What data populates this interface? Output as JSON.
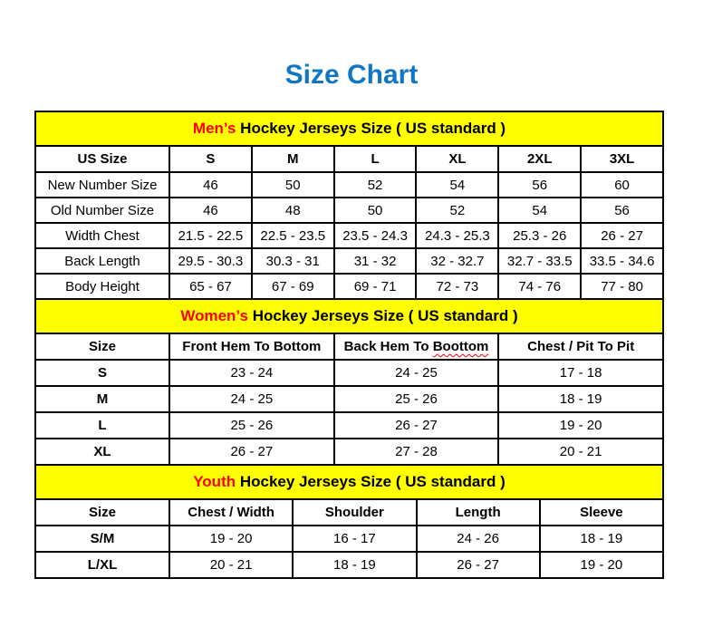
{
  "page": {
    "title": "Size Chart",
    "title_color": "#1177c5",
    "accent_color": "#ff0000",
    "band_color": "#ffff00"
  },
  "mens": {
    "band_accent": "Men’s",
    "band_rest": " Hockey Jerseys Size ( US standard )",
    "columns": [
      "US Size",
      "S",
      "M",
      "L",
      "XL",
      "2XL",
      "3XL"
    ],
    "rows": [
      {
        "label": "New Number Size",
        "values": [
          "46",
          "50",
          "52",
          "54",
          "56",
          "60"
        ]
      },
      {
        "label": "Old Number Size",
        "values": [
          "46",
          "48",
          "50",
          "52",
          "54",
          "56"
        ]
      },
      {
        "label": "Width Chest",
        "values": [
          "21.5 - 22.5",
          "22.5 - 23.5",
          "23.5 - 24.3",
          "24.3 - 25.3",
          "25.3 - 26",
          "26 - 27"
        ]
      },
      {
        "label": "Back Length",
        "values": [
          "29.5 - 30.3",
          "30.3 - 31",
          "31 - 32",
          "32 - 32.7",
          "32.7 - 33.5",
          "33.5 - 34.6"
        ]
      },
      {
        "label": "Body Height",
        "values": [
          "65 - 67",
          "67 - 69",
          "69 - 71",
          "72 - 73",
          "74 - 76",
          "77 - 80"
        ]
      }
    ]
  },
  "womens": {
    "band_accent": "Women’s",
    "band_rest": " Hockey Jerseys Size ( US standard )",
    "columns": [
      "Size",
      "Front Hem To Bottom",
      "Back Hem To Boottom",
      "Chest / Pit To Pit"
    ],
    "misspelled_prefix": "Back Hem To ",
    "misspelled_word": "Boottom",
    "rows": [
      {
        "label": "S",
        "values": [
          "23 - 24",
          "24 - 25",
          "17 - 18"
        ]
      },
      {
        "label": "M",
        "values": [
          "24 - 25",
          "25 - 26",
          "18 - 19"
        ]
      },
      {
        "label": "L",
        "values": [
          "25 - 26",
          "26 - 27",
          "19 - 20"
        ]
      },
      {
        "label": "XL",
        "values": [
          "26 - 27",
          "27 - 28",
          "20 - 21"
        ]
      }
    ]
  },
  "youth": {
    "band_accent": "Youth",
    "band_rest": " Hockey Jerseys Size ( US standard )",
    "columns": [
      "Size",
      "Chest / Width",
      "Shoulder",
      "Length",
      "Sleeve"
    ],
    "rows": [
      {
        "label": "S/M",
        "values": [
          "19 - 20",
          "16 - 17",
          "24 - 26",
          "18 - 19"
        ]
      },
      {
        "label": "L/XL",
        "values": [
          "20 - 21",
          "18 - 19",
          "26 - 27",
          "19 - 20"
        ]
      }
    ]
  }
}
